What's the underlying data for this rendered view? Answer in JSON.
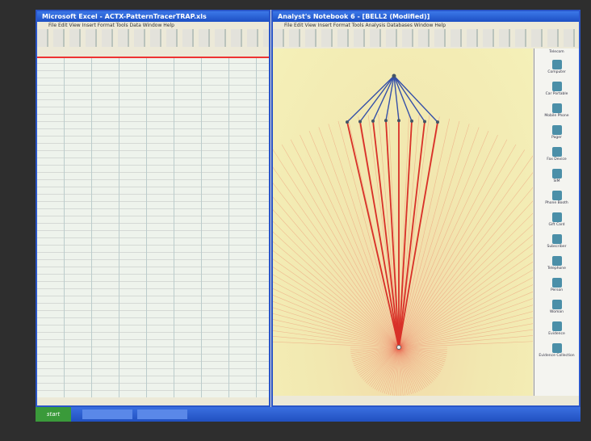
{
  "excel": {
    "title": "Microsoft Excel - ACTX-PatternTracerTRAP.xls",
    "menu": "File  Edit  View  Insert  Format  Tools  Data  Window  Help"
  },
  "notebook": {
    "title": "Analyst's Notebook 6 - [BELL2 (Modified)]",
    "menu": "File  Edit  View  Insert  Format  Tools  Analysis  Databases  Window  Help",
    "palette": {
      "heading": "Telecom",
      "items": [
        "Computer",
        "Car Portable",
        "Mobile Phone",
        "Pager",
        "Fax Device",
        "SIM",
        "Phone Booth",
        "Gift Card",
        "Subscriber",
        "Telephone",
        "Person",
        "Woman",
        "Evidence",
        "Evidence Collection"
      ]
    }
  },
  "taskbar": {
    "start": "start"
  }
}
